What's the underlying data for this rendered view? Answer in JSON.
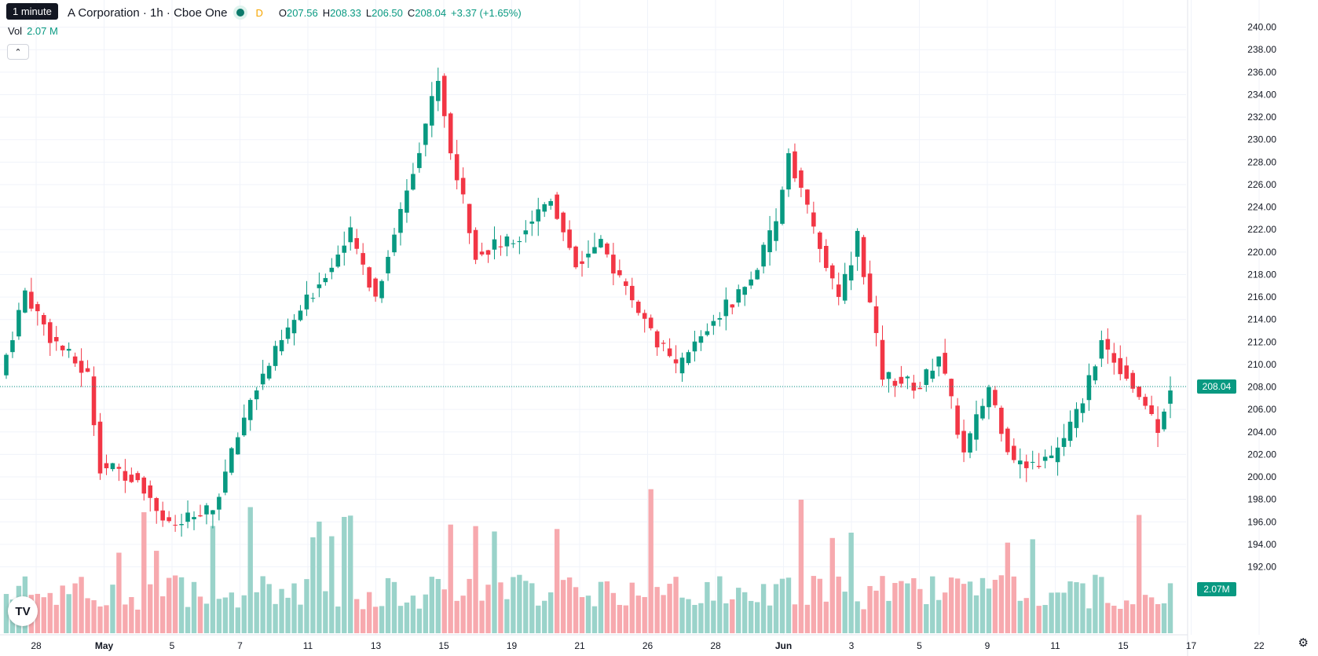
{
  "header": {
    "title": "A Corporation · 1h · Cboe One",
    "tooltip": "1 minute",
    "market_dot_color": "#089981",
    "period_badge": "D",
    "ohlc": [
      {
        "k": "O",
        "v": "207.56"
      },
      {
        "k": "H",
        "v": "208.33"
      },
      {
        "k": "L",
        "v": "206.50"
      },
      {
        "k": "C",
        "v": "208.04"
      }
    ],
    "change": "+3.37 (+1.65%)",
    "vol_label": "Vol",
    "vol_value": "2.07 M",
    "collapse_icon": "chevron-up-icon",
    "logo_text": "TV",
    "settings_icon": "gear-icon"
  },
  "chart_data": {
    "type": "candlestick",
    "price_axis": {
      "ticks": [
        192,
        194,
        196,
        198,
        200,
        202,
        204,
        206,
        208,
        210,
        212,
        214,
        216,
        218,
        220,
        222,
        224,
        226,
        228,
        230,
        232,
        234,
        236,
        238,
        240
      ],
      "ylim": [
        191.2,
        240.6
      ]
    },
    "time_axis": {
      "labels": [
        "28",
        "May",
        "5",
        "7",
        "11",
        "13",
        "15",
        "19",
        "21",
        "26",
        "28",
        "Jun",
        "3",
        "5",
        "9",
        "11",
        "15",
        "17",
        "22"
      ],
      "bold_labels": [
        "May",
        "Jun"
      ]
    },
    "last_price": 208.04,
    "last_price_label": "208.04",
    "last_volume_label": "2.07M",
    "colors": {
      "up": "#089981",
      "down": "#f23645",
      "vol_up": "#9ad3ca",
      "vol_down": "#f7a9ae",
      "grid": "#f0f3fa"
    },
    "segments": [
      {
        "from": 0,
        "to": 4,
        "p": [
          209.0,
          216.5
        ]
      },
      {
        "from": 4,
        "to": 8,
        "p": [
          216.5,
          212.5
        ]
      },
      {
        "from": 8,
        "to": 14,
        "p": [
          212.5,
          209.0
        ]
      },
      {
        "from": 14,
        "to": 16,
        "p": [
          209.0,
          201.0
        ]
      },
      {
        "from": 16,
        "to": 22,
        "p": [
          201.0,
          200.0
        ]
      },
      {
        "from": 22,
        "to": 27,
        "p": [
          200.0,
          195.5
        ]
      },
      {
        "from": 27,
        "to": 34,
        "p": [
          195.5,
          197.0
        ]
      },
      {
        "from": 34,
        "to": 40,
        "p": [
          197.0,
          207.0
        ]
      },
      {
        "from": 40,
        "to": 46,
        "p": [
          207.0,
          213.0
        ]
      },
      {
        "from": 46,
        "to": 50,
        "p": [
          213.0,
          216.5
        ]
      },
      {
        "from": 50,
        "to": 56,
        "p": [
          216.5,
          221.5
        ]
      },
      {
        "from": 56,
        "to": 60,
        "p": [
          221.5,
          216.0
        ]
      },
      {
        "from": 60,
        "to": 66,
        "p": [
          216.0,
          227.5
        ]
      },
      {
        "from": 66,
        "to": 70,
        "p": [
          227.5,
          235.5
        ]
      },
      {
        "from": 70,
        "to": 72,
        "p": [
          235.5,
          229.0
        ]
      },
      {
        "from": 72,
        "to": 76,
        "p": [
          229.0,
          220.0
        ]
      },
      {
        "from": 76,
        "to": 82,
        "p": [
          220.0,
          221.0
        ]
      },
      {
        "from": 82,
        "to": 88,
        "p": [
          221.0,
          225.0
        ]
      },
      {
        "from": 88,
        "to": 92,
        "p": [
          225.0,
          219.0
        ]
      },
      {
        "from": 92,
        "to": 96,
        "p": [
          219.0,
          220.5
        ]
      },
      {
        "from": 96,
        "to": 104,
        "p": [
          220.5,
          213.0
        ]
      },
      {
        "from": 104,
        "to": 108,
        "p": [
          213.0,
          209.5
        ]
      },
      {
        "from": 108,
        "to": 114,
        "p": [
          209.5,
          214.0
        ]
      },
      {
        "from": 114,
        "to": 120,
        "p": [
          214.0,
          217.5
        ]
      },
      {
        "from": 120,
        "to": 124,
        "p": [
          217.5,
          222.5
        ]
      },
      {
        "from": 124,
        "to": 126,
        "p": [
          222.5,
          229.0
        ]
      },
      {
        "from": 126,
        "to": 130,
        "p": [
          229.0,
          222.0
        ]
      },
      {
        "from": 130,
        "to": 134,
        "p": [
          222.0,
          215.5
        ]
      },
      {
        "from": 134,
        "to": 137,
        "p": [
          215.5,
          221.5
        ]
      },
      {
        "from": 137,
        "to": 141,
        "p": [
          221.5,
          209.0
        ]
      },
      {
        "from": 141,
        "to": 147,
        "p": [
          209.0,
          208.0
        ]
      },
      {
        "from": 147,
        "to": 150,
        "p": [
          208.0,
          211.0
        ]
      },
      {
        "from": 150,
        "to": 154,
        "p": [
          211.0,
          202.0
        ]
      },
      {
        "from": 154,
        "to": 158,
        "p": [
          202.0,
          208.0
        ]
      },
      {
        "from": 158,
        "to": 162,
        "p": [
          208.0,
          201.0
        ]
      },
      {
        "from": 162,
        "to": 168,
        "p": [
          201.0,
          201.5
        ]
      },
      {
        "from": 168,
        "to": 172,
        "p": [
          201.5,
          205.5
        ]
      },
      {
        "from": 172,
        "to": 176,
        "p": [
          205.5,
          212.0
        ]
      },
      {
        "from": 176,
        "to": 180,
        "p": [
          212.0,
          209.0
        ]
      },
      {
        "from": 180,
        "to": 185,
        "p": [
          209.0,
          204.5
        ]
      },
      {
        "from": 185,
        "to": 187,
        "p": [
          204.5,
          208.0
        ]
      }
    ],
    "bars_count": 187
  }
}
